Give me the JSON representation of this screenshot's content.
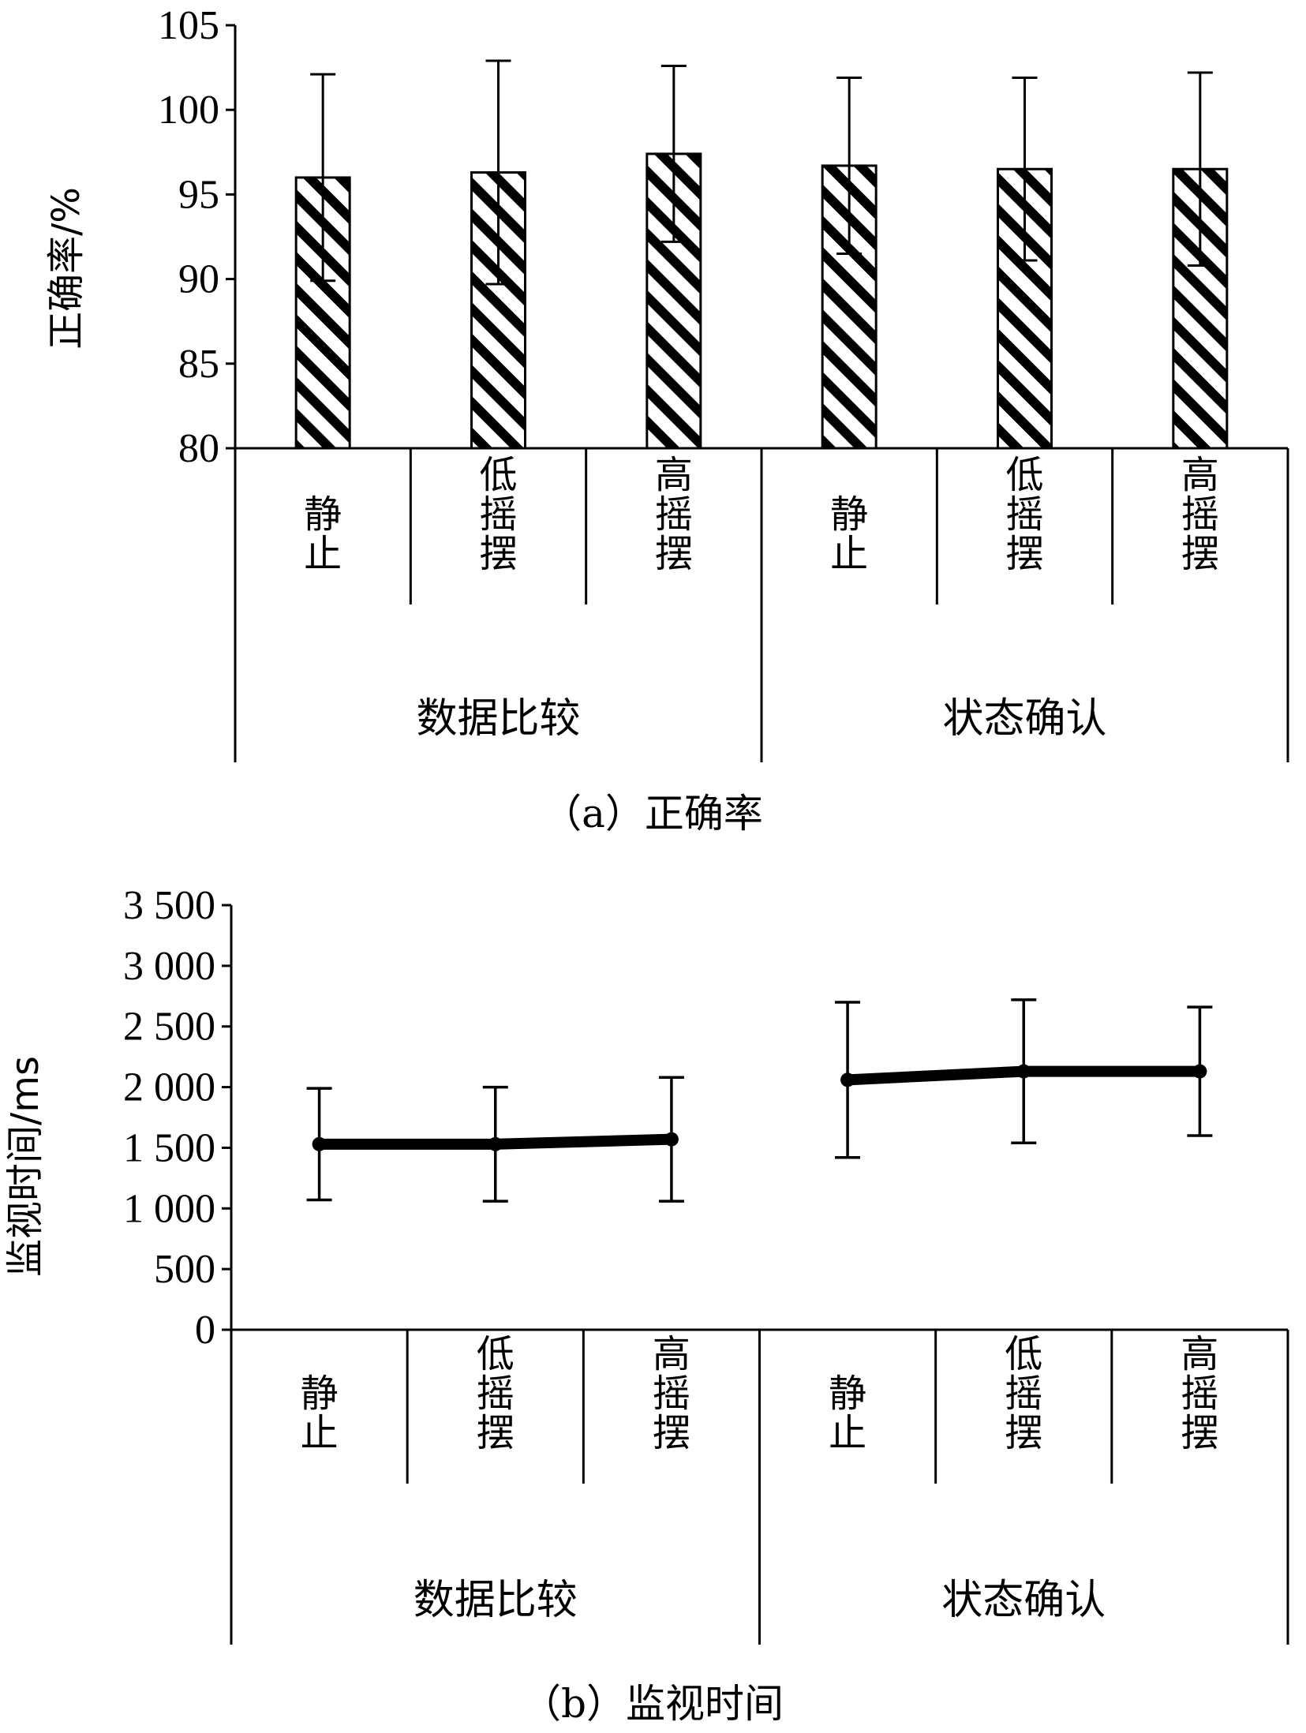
{
  "chart_data": [
    {
      "type": "bar",
      "caption": "（a）正确率",
      "ylabel": "正确率/%",
      "ylim": [
        80,
        105
      ],
      "yticks": [
        "80",
        "85",
        "90",
        "95",
        "100",
        "105"
      ],
      "categories": [
        "静止",
        "低摇摆",
        "高摇摆",
        "静止",
        "低摇摆",
        "高摇摆"
      ],
      "groups": [
        "数据比较",
        "状态确认"
      ],
      "values": [
        96.0,
        96.3,
        97.4,
        96.7,
        96.5,
        96.5
      ],
      "error": [
        6.1,
        6.6,
        5.2,
        5.2,
        5.4,
        5.7
      ],
      "pattern": "diagonal-hatch",
      "grid": false
    },
    {
      "type": "line",
      "caption": "（b）监视时间",
      "ylabel": "监视时间/ms",
      "ylim": [
        0,
        3500
      ],
      "yticks": [
        "0",
        "500",
        "1 000",
        "1 500",
        "2 000",
        "2 500",
        "3 000",
        "3 500"
      ],
      "categories": [
        "静止",
        "低摇摆",
        "高摇摆",
        "静止",
        "低摇摆",
        "高摇摆"
      ],
      "groups": [
        "数据比较",
        "状态确认"
      ],
      "segments": [
        [
          0,
          1,
          2
        ],
        [
          3,
          4,
          5
        ]
      ],
      "values": [
        1530,
        1530,
        1570,
        2060,
        2130,
        2130
      ],
      "error": [
        460,
        470,
        510,
        640,
        590,
        530
      ],
      "grid": false
    }
  ]
}
